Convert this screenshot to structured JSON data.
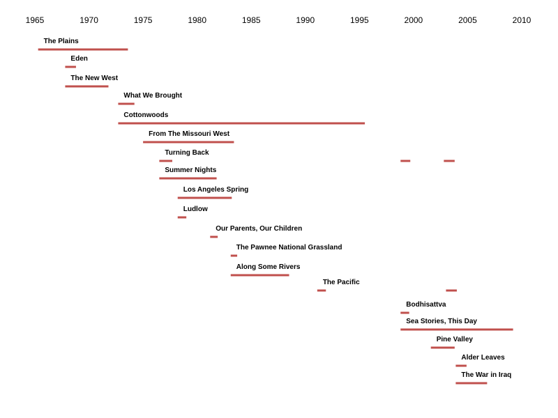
{
  "chart_data": {
    "type": "bar",
    "orientation": "horizontal-timeline",
    "title": "",
    "xlabel": "",
    "ylabel": "",
    "xlim": [
      1965,
      2010
    ],
    "x_ticks": [
      1965,
      1970,
      1975,
      1980,
      1985,
      1990,
      1995,
      2000,
      2005,
      2010
    ],
    "x_axis_position": "top",
    "grid": false,
    "legend": "none",
    "bar_color": "#c0504d",
    "series": [
      {
        "name": "The Plains",
        "start": 1965.3,
        "end": 1973.6
      },
      {
        "name": "Eden",
        "start": 1967.8,
        "end": 1968.8
      },
      {
        "name": "The New West",
        "start": 1967.8,
        "end": 1971.8
      },
      {
        "name": "What We Brought",
        "start": 1972.7,
        "end": 1974.2
      },
      {
        "name": "Cottonwoods",
        "start": 1972.7,
        "end": 1995.5
      },
      {
        "name": "From The Missouri West",
        "start": 1975.0,
        "end": 1983.4
      },
      {
        "name": "Turning Back",
        "start": 1976.5,
        "end": 1977.7,
        "extra": [
          {
            "start": 1998.8,
            "end": 1999.7
          },
          {
            "start": 2002.8,
            "end": 2003.8
          }
        ]
      },
      {
        "name": "Summer Nights",
        "start": 1976.5,
        "end": 1981.8
      },
      {
        "name": "Los Angeles Spring",
        "start": 1978.2,
        "end": 1983.2
      },
      {
        "name": "Ludlow",
        "start": 1978.2,
        "end": 1979.0
      },
      {
        "name": "Our Parents, Our Children",
        "start": 1981.2,
        "end": 1981.9
      },
      {
        "name": "The Pawnee National Grassland",
        "start": 1983.1,
        "end": 1983.7
      },
      {
        "name": "Along Some Rivers",
        "start": 1983.1,
        "end": 1988.5
      },
      {
        "name": "The Pacific",
        "start": 1991.1,
        "end": 1991.9,
        "extra": [
          {
            "start": 2003.0,
            "end": 2004.0
          }
        ]
      },
      {
        "name": "Bodhisattva",
        "start": 1998.8,
        "end": 1999.6
      },
      {
        "name": "Sea Stories, This Day",
        "start": 1998.8,
        "end": 2009.2
      },
      {
        "name": "Pine Valley",
        "start": 2001.6,
        "end": 2003.8
      },
      {
        "name": "Alder Leaves",
        "start": 2003.9,
        "end": 2004.9
      },
      {
        "name": "The War in Iraq",
        "start": 2003.9,
        "end": 2006.8
      }
    ]
  }
}
